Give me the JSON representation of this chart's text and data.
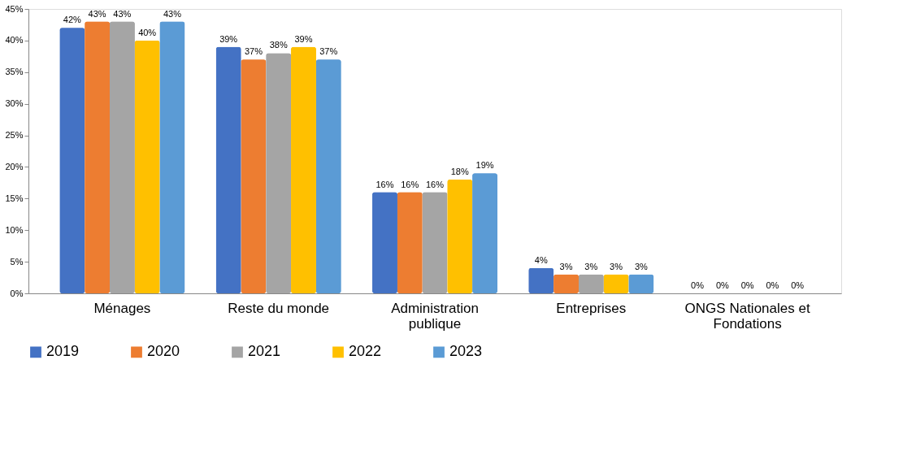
{
  "chart_data": {
    "type": "bar",
    "categories": [
      "Ménages",
      "Reste du monde",
      "Administration publique",
      "Entreprises",
      "ONGS Nationales et Fondations"
    ],
    "series": [
      {
        "name": "2019",
        "color": "#4472c4",
        "values": [
          42,
          39,
          16,
          4,
          0
        ],
        "value_labels": [
          "42%",
          "39%",
          "16%",
          "4%",
          "0%"
        ]
      },
      {
        "name": "2020",
        "color": "#ed7d31",
        "values": [
          43,
          37,
          16,
          3,
          0
        ],
        "value_labels": [
          "43%",
          "37%",
          "16%",
          "3%",
          "0%"
        ]
      },
      {
        "name": "2021",
        "color": "#a5a5a5",
        "values": [
          43,
          38,
          16,
          3,
          0
        ],
        "value_labels": [
          "43%",
          "38%",
          "16%",
          "3%",
          "0%"
        ]
      },
      {
        "name": "2022",
        "color": "#ffc000",
        "values": [
          40,
          39,
          18,
          3,
          0
        ],
        "value_labels": [
          "40%",
          "39%",
          "18%",
          "3%",
          "0%"
        ]
      },
      {
        "name": "2023",
        "color": "#5b9bd5",
        "values": [
          43,
          37,
          19,
          3,
          0
        ],
        "value_labels": [
          "43%",
          "37%",
          "19%",
          "3%",
          "0%"
        ]
      }
    ],
    "ylim": [
      0,
      45
    ],
    "yticks": [
      {
        "value": 0,
        "label": "0%"
      },
      {
        "value": 5,
        "label": "5%"
      },
      {
        "value": 10,
        "label": "10%"
      },
      {
        "value": 15,
        "label": "15%"
      },
      {
        "value": 20,
        "label": "20%"
      },
      {
        "value": 25,
        "label": "25%"
      },
      {
        "value": 30,
        "label": "30%"
      },
      {
        "value": 35,
        "label": "35%"
      },
      {
        "value": 40,
        "label": "40%"
      },
      {
        "value": 45,
        "label": "45%"
      }
    ],
    "grid": false,
    "legend": "bottom"
  }
}
